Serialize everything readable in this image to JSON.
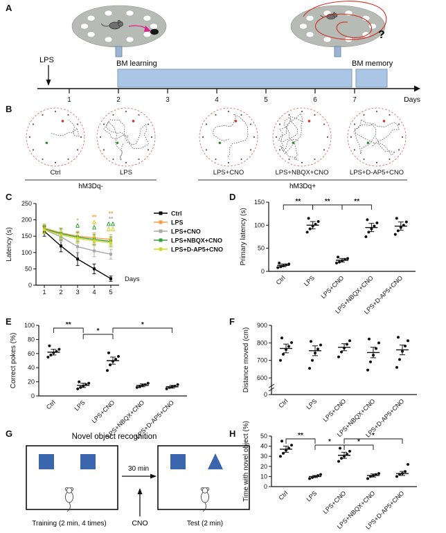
{
  "panel_labels": {
    "a": "A",
    "b": "B",
    "c": "C",
    "d": "D",
    "e": "E",
    "f": "F",
    "g": "G",
    "h": "H"
  },
  "colors": {
    "ctrl": "#000000",
    "lps": "#f59b42",
    "lps_cno": "#a8a8a8",
    "lps_nbqx_cno": "#3aa13a",
    "lps_dap5_cno": "#cdd92f",
    "bar_fill": "#abc5e5",
    "bar_edge": "#7e99bb",
    "maze_fill": "#b6bbb6",
    "track_edge": "#e2685c",
    "shape_blue": "#3b66ad",
    "path_red": "#cf2e20",
    "path_pink": "#e0218a"
  },
  "panel_a": {
    "lps": "LPS",
    "learning": "BM  learning",
    "memory": "BM memory",
    "days_label": "Days",
    "day_ticks": [
      "1",
      "2",
      "3",
      "4",
      "5",
      "6",
      "7"
    ],
    "question_mark": "?"
  },
  "panel_b": {
    "tracks": [
      "Ctrl",
      "LPS",
      "LPS+CNO",
      "LPS+NBQX+CNO",
      "LPS+D-AP5+CNO"
    ],
    "group_neg": "hM3Dq-",
    "group_pos": "hM3Dq+"
  },
  "panel_g": {
    "title": "Novel object recognition",
    "interval": "30 min",
    "cno": "CNO",
    "training": "Training (2 min, 4 times)",
    "test": "Test (2 min)"
  },
  "chart_data": [
    {
      "panel": "C",
      "type": "line",
      "xlabel": "Days",
      "ylabel": "Latency (s)",
      "x": [
        1,
        2,
        3,
        4,
        5
      ],
      "ylim": [
        0,
        250
      ],
      "yticks": [
        0,
        50,
        100,
        150,
        200,
        250
      ],
      "legend_position": "right",
      "series": [
        {
          "name": "Ctrl",
          "color": "#000000",
          "values": [
            165,
            120,
            80,
            50,
            20
          ],
          "sem": [
            15,
            18,
            20,
            15,
            8
          ]
        },
        {
          "name": "LPS",
          "color": "#f59b42",
          "values": [
            175,
            160,
            150,
            145,
            140
          ],
          "sem": [
            12,
            15,
            15,
            15,
            15
          ]
        },
        {
          "name": "LPS+CNO",
          "color": "#a8a8a8",
          "values": [
            170,
            148,
            118,
            105,
            95
          ],
          "sem": [
            12,
            15,
            18,
            18,
            15
          ]
        },
        {
          "name": "LPS+NBQX+CNO",
          "color": "#3aa13a",
          "values": [
            172,
            158,
            147,
            140,
            134
          ],
          "sem": [
            12,
            14,
            15,
            15,
            14
          ]
        },
        {
          "name": "LPS+D-AP5+CNO",
          "color": "#cdd92f",
          "values": [
            170,
            154,
            143,
            136,
            130
          ],
          "sem": [
            12,
            14,
            15,
            15,
            14
          ]
        }
      ],
      "annotations": [
        {
          "x": 3,
          "marks": [
            {
              "text": "Δ",
              "color": "#3aa13a"
            },
            {
              "text": "*",
              "color": "#f59b42"
            }
          ]
        },
        {
          "x": 4,
          "marks": [
            {
              "text": "Δ",
              "color": "#3aa13a"
            },
            {
              "text": "Δ",
              "color": "#cdd92f"
            },
            {
              "text": "**",
              "color": "#f59b42"
            }
          ]
        },
        {
          "x": 5,
          "marks": [
            {
              "text": "ΔΔ",
              "color": "#cdd92f"
            },
            {
              "text": "ΔΔ",
              "color": "#3aa13a"
            },
            {
              "text": "**",
              "color": "#a8a8a8"
            },
            {
              "text": "**",
              "color": "#f59b42"
            }
          ]
        }
      ]
    },
    {
      "panel": "D",
      "type": "scatter",
      "ylabel": "Primary latency (s)",
      "ylim": [
        0,
        150
      ],
      "yticks": [
        0,
        50,
        100,
        150
      ],
      "categories": [
        "Ctrl",
        "LPS",
        "LPS+CNO",
        "LPS+NBQX+CNO",
        "LPS+D-AP5+CNO"
      ],
      "groups": [
        {
          "points": [
            8,
            10,
            12,
            14,
            16,
            18
          ],
          "mean": 13,
          "sem": 3
        },
        {
          "points": [
            85,
            92,
            98,
            102,
            108,
            115
          ],
          "mean": 100,
          "sem": 8
        },
        {
          "points": [
            18,
            20,
            23,
            26,
            28,
            31
          ],
          "mean": 24,
          "sem": 4
        },
        {
          "points": [
            75,
            85,
            92,
            98,
            105,
            112
          ],
          "mean": 95,
          "sem": 9
        },
        {
          "points": [
            80,
            88,
            95,
            100,
            107,
            115
          ],
          "mean": 98,
          "sem": 9
        }
      ],
      "brackets": [
        {
          "from": 0,
          "to": 1,
          "label": "**",
          "level": 0
        },
        {
          "from": 1,
          "to": 2,
          "label": "**",
          "level": 0
        },
        {
          "from": 2,
          "to": 3,
          "label": "**",
          "level": 0
        }
      ]
    },
    {
      "panel": "E",
      "type": "scatter",
      "ylabel": "Correct pokes (%)",
      "ylim": [
        0,
        100
      ],
      "yticks": [
        0,
        20,
        40,
        60,
        80,
        100
      ],
      "categories": [
        "Ctrl",
        "LPS",
        "LPS+CNO",
        "LPS+NBQX+CNO",
        "LPS+D-AP5+CNO"
      ],
      "groups": [
        {
          "points": [
            55,
            58,
            61,
            63,
            66,
            71
          ],
          "mean": 62,
          "sem": 4
        },
        {
          "points": [
            10,
            12,
            14,
            16,
            18,
            20
          ],
          "mean": 15,
          "sem": 3
        },
        {
          "points": [
            36,
            44,
            49,
            52,
            56,
            61
          ],
          "mean": 50,
          "sem": 5
        },
        {
          "points": [
            12,
            13,
            15,
            16,
            18
          ],
          "mean": 15,
          "sem": 2
        },
        {
          "points": [
            10,
            12,
            13,
            14,
            16
          ],
          "mean": 13,
          "sem": 2
        }
      ],
      "brackets": [
        {
          "from": 0,
          "to": 1,
          "label": "**",
          "level": 0
        },
        {
          "from": 1,
          "to": 2,
          "label": "*",
          "level": 1
        },
        {
          "from": 2,
          "to": 4,
          "label": "*",
          "level": 0
        }
      ]
    },
    {
      "panel": "F",
      "type": "scatter",
      "ylabel": "Distance moved (cm)",
      "ylim": [
        600,
        900
      ],
      "yticks": [
        600,
        700,
        800,
        900
      ],
      "axis_break": true,
      "break_label": "0",
      "categories": [
        "Ctrl",
        "LPS",
        "LPS+CNO",
        "LPS+NBQX+CNO",
        "LPS+D-AP5+CNO"
      ],
      "groups": [
        {
          "points": [
            700,
            735,
            762,
            780,
            802,
            828
          ],
          "mean": 768,
          "sem": 25
        },
        {
          "points": [
            655,
            700,
            742,
            765,
            788,
            808
          ],
          "mean": 755,
          "sem": 28
        },
        {
          "points": [
            720,
            748,
            770,
            792,
            812
          ],
          "mean": 775,
          "sem": 20
        },
        {
          "points": [
            645,
            692,
            730,
            768,
            800,
            822
          ],
          "mean": 745,
          "sem": 30
        },
        {
          "points": [
            660,
            705,
            752,
            782,
            812,
            832
          ],
          "mean": 760,
          "sem": 28
        }
      ],
      "brackets": []
    },
    {
      "panel": "H",
      "type": "scatter",
      "ylabel": "Time with novel object (%)",
      "ylim": [
        0,
        50
      ],
      "yticks": [
        0,
        10,
        20,
        30,
        40,
        50
      ],
      "categories": [
        "Ctrl",
        "LPS",
        "LPS+CNO",
        "LPS+NBQX+CNO",
        "LPS+D-AP5+CNO"
      ],
      "groups": [
        {
          "points": [
            30,
            33,
            36,
            38,
            41,
            45
          ],
          "mean": 37,
          "sem": 3
        },
        {
          "points": [
            8,
            9,
            10,
            11,
            12
          ],
          "mean": 10,
          "sem": 1
        },
        {
          "points": [
            25,
            28,
            30,
            32,
            35,
            38
          ],
          "mean": 31,
          "sem": 3
        },
        {
          "points": [
            8,
            10,
            11,
            12,
            13
          ],
          "mean": 11,
          "sem": 1.5
        },
        {
          "points": [
            10,
            12,
            13,
            15,
            22
          ],
          "mean": 13,
          "sem": 2
        }
      ],
      "brackets": [
        {
          "from": 0,
          "to": 1,
          "label": "**",
          "level": 0
        },
        {
          "from": 1,
          "to": 2,
          "label": "*",
          "level": 1
        },
        {
          "from": 2,
          "to": 3,
          "label": "*",
          "level": 1
        },
        {
          "from": 2,
          "to": 4,
          "label": "*",
          "level": 0
        }
      ]
    }
  ]
}
